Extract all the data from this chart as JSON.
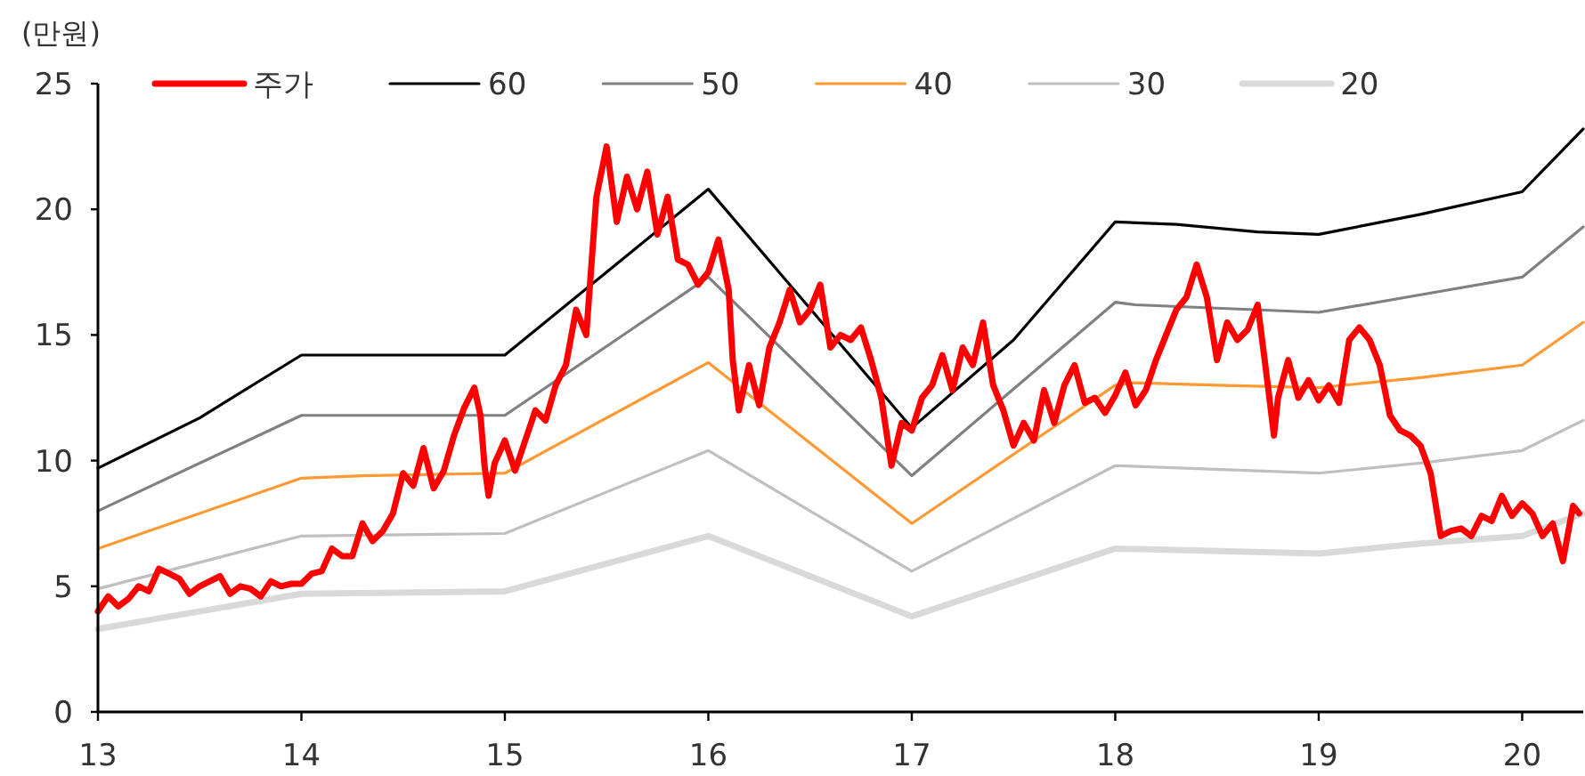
{
  "chart_data": {
    "type": "line",
    "ylabel": "(만원)",
    "xlim": [
      13,
      20.3
    ],
    "xticks": [
      13,
      14,
      15,
      16,
      17,
      18,
      19,
      20
    ],
    "ylim": [
      0,
      25
    ],
    "yticks": [
      0,
      5,
      10,
      15,
      20,
      25
    ],
    "legend": "top",
    "series": [
      {
        "name": "주가",
        "color": "#ff0000",
        "x": [
          13.0,
          13.05,
          13.1,
          13.15,
          13.2,
          13.25,
          13.3,
          13.35,
          13.4,
          13.45,
          13.5,
          13.55,
          13.6,
          13.65,
          13.7,
          13.75,
          13.8,
          13.85,
          13.9,
          13.95,
          14.0,
          14.05,
          14.1,
          14.15,
          14.2,
          14.25,
          14.3,
          14.35,
          14.4,
          14.45,
          14.5,
          14.55,
          14.6,
          14.65,
          14.7,
          14.75,
          14.8,
          14.85,
          14.88,
          14.9,
          14.92,
          14.95,
          15.0,
          15.05,
          15.1,
          15.15,
          15.2,
          15.25,
          15.3,
          15.35,
          15.4,
          15.45,
          15.5,
          15.55,
          15.6,
          15.65,
          15.7,
          15.75,
          15.8,
          15.85,
          15.9,
          15.95,
          16.0,
          16.05,
          16.1,
          16.12,
          16.15,
          16.2,
          16.25,
          16.3,
          16.35,
          16.4,
          16.45,
          16.5,
          16.55,
          16.6,
          16.65,
          16.7,
          16.75,
          16.8,
          16.85,
          16.9,
          16.95,
          17.0,
          17.05,
          17.1,
          17.15,
          17.2,
          17.25,
          17.3,
          17.35,
          17.4,
          17.45,
          17.5,
          17.55,
          17.6,
          17.65,
          17.7,
          17.75,
          17.8,
          17.85,
          17.9,
          17.95,
          18.0,
          18.05,
          18.1,
          18.15,
          18.2,
          18.25,
          18.3,
          18.35,
          18.4,
          18.45,
          18.5,
          18.55,
          18.6,
          18.65,
          18.7,
          18.75,
          18.78,
          18.8,
          18.85,
          18.9,
          18.95,
          19.0,
          19.05,
          19.1,
          19.15,
          19.2,
          19.25,
          19.3,
          19.35,
          19.4,
          19.45,
          19.5,
          19.55,
          19.6,
          19.65,
          19.7,
          19.75,
          19.8,
          19.85,
          19.9,
          19.95,
          20.0,
          20.05,
          20.1,
          20.15,
          20.2,
          20.25,
          20.28
        ],
        "values": [
          4.0,
          4.6,
          4.2,
          4.5,
          5.0,
          4.8,
          5.7,
          5.5,
          5.3,
          4.7,
          5.0,
          5.2,
          5.4,
          4.7,
          5.0,
          4.9,
          4.6,
          5.2,
          5.0,
          5.1,
          5.1,
          5.5,
          5.6,
          6.5,
          6.2,
          6.2,
          7.5,
          6.8,
          7.2,
          7.9,
          9.5,
          9.0,
          10.5,
          8.9,
          9.6,
          11.0,
          12.1,
          12.9,
          11.8,
          9.8,
          8.6,
          9.9,
          10.8,
          9.6,
          10.8,
          12.0,
          11.6,
          13.0,
          13.8,
          16.0,
          15.0,
          20.5,
          22.5,
          19.5,
          21.3,
          20.0,
          21.5,
          19.0,
          20.5,
          18.0,
          17.8,
          17.0,
          17.5,
          18.8,
          16.8,
          14.0,
          12.0,
          13.8,
          12.2,
          14.5,
          15.5,
          16.8,
          15.5,
          16.0,
          17.0,
          14.5,
          15.0,
          14.8,
          15.3,
          14.0,
          12.5,
          9.8,
          11.5,
          11.2,
          12.5,
          13.0,
          14.2,
          12.8,
          14.5,
          13.8,
          15.5,
          13.0,
          12.0,
          10.6,
          11.5,
          10.8,
          12.8,
          11.5,
          13.0,
          13.8,
          12.3,
          12.5,
          11.9,
          12.6,
          13.5,
          12.2,
          12.8,
          14.0,
          15.0,
          16.0,
          16.5,
          17.8,
          16.5,
          14.0,
          15.5,
          14.8,
          15.2,
          16.2,
          13.0,
          11.0,
          12.5,
          14.0,
          12.5,
          13.2,
          12.4,
          13.0,
          12.3,
          14.8,
          15.3,
          14.8,
          13.8,
          11.8,
          11.2,
          11.0,
          10.6,
          9.5,
          7.0,
          7.2,
          7.3,
          7.0,
          7.8,
          7.6,
          8.6,
          7.8,
          8.3,
          7.9,
          7.0,
          7.5,
          6.0,
          8.2,
          7.9
        ]
      },
      {
        "name": "60",
        "color": "#000000",
        "x": [
          13,
          13.5,
          14,
          15,
          16,
          17,
          17.5,
          18,
          18.3,
          18.7,
          19,
          19.5,
          20,
          20.3
        ],
        "values": [
          9.7,
          11.7,
          14.2,
          14.2,
          20.8,
          11.3,
          14.8,
          19.5,
          19.4,
          19.1,
          19.0,
          19.8,
          20.7,
          23.2
        ]
      },
      {
        "name": "50",
        "color": "#808080",
        "x": [
          13,
          14,
          15,
          16,
          17,
          18,
          18.1,
          19,
          19.5,
          20,
          20.3
        ],
        "values": [
          8.0,
          11.8,
          11.8,
          17.3,
          9.4,
          16.3,
          16.2,
          15.9,
          16.6,
          17.3,
          19.3
        ]
      },
      {
        "name": "40",
        "color": "#ff9933",
        "x": [
          13,
          14,
          14.3,
          15,
          16,
          17,
          18,
          18.1,
          18.5,
          19,
          19.5,
          20,
          20.3
        ],
        "values": [
          6.5,
          9.3,
          9.4,
          9.5,
          13.9,
          7.5,
          13.0,
          13.1,
          13.0,
          12.9,
          13.3,
          13.8,
          15.5
        ]
      },
      {
        "name": "30",
        "color": "#bfbfbf",
        "x": [
          13,
          14,
          15,
          16,
          17,
          18,
          19,
          19.5,
          20,
          20.3
        ],
        "values": [
          4.9,
          7.0,
          7.1,
          10.4,
          5.6,
          9.8,
          9.5,
          9.9,
          10.4,
          11.6
        ]
      },
      {
        "name": "20",
        "color": "#d9d9d9",
        "x": [
          13,
          14,
          15,
          16,
          17,
          18,
          19,
          19.5,
          20,
          20.3
        ],
        "values": [
          3.3,
          4.7,
          4.8,
          7.0,
          3.8,
          6.5,
          6.3,
          6.7,
          7.0,
          7.9
        ]
      }
    ]
  }
}
